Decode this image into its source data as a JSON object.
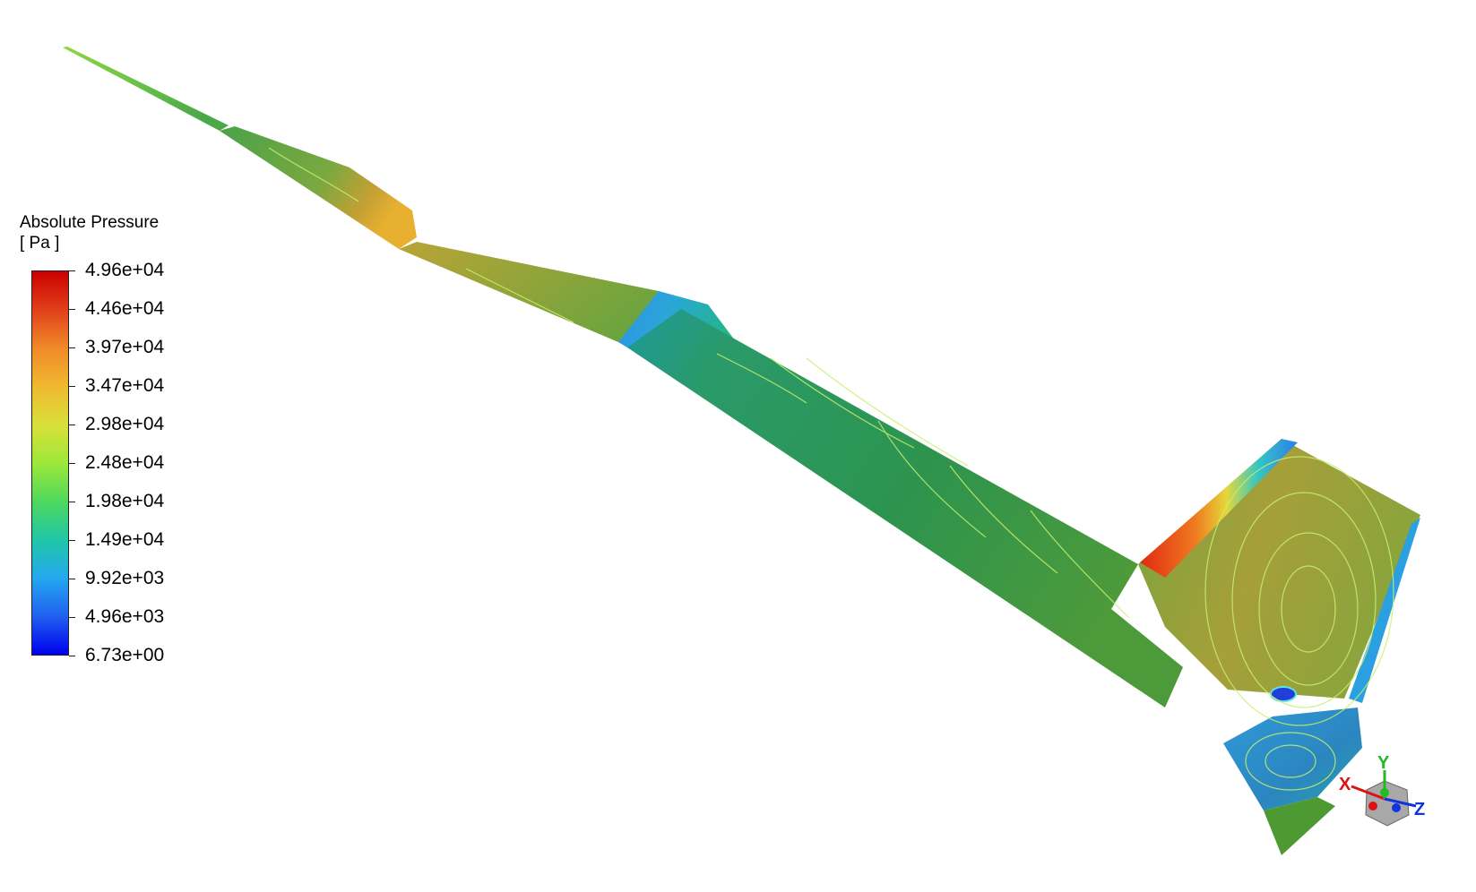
{
  "legend": {
    "title": "Absolute Pressure",
    "unit": "[ Pa ]",
    "ticks": [
      "4.96e+04",
      "4.46e+04",
      "3.97e+04",
      "3.47e+04",
      "2.98e+04",
      "2.48e+04",
      "1.98e+04",
      "1.49e+04",
      "9.92e+03",
      "4.96e+03",
      "6.73e+00"
    ],
    "colormap": [
      "#cc0000",
      "#e0401a",
      "#f08a2a",
      "#f0b830",
      "#d8e03a",
      "#9ee83a",
      "#4fd85c",
      "#20c7a8",
      "#24a8ee",
      "#2060f0",
      "#0000ee"
    ]
  },
  "triad": {
    "x_label": "X",
    "y_label": "Y",
    "z_label": "Z",
    "x_color": "#dd1111",
    "y_color": "#22bb22",
    "z_color": "#1133dd"
  }
}
